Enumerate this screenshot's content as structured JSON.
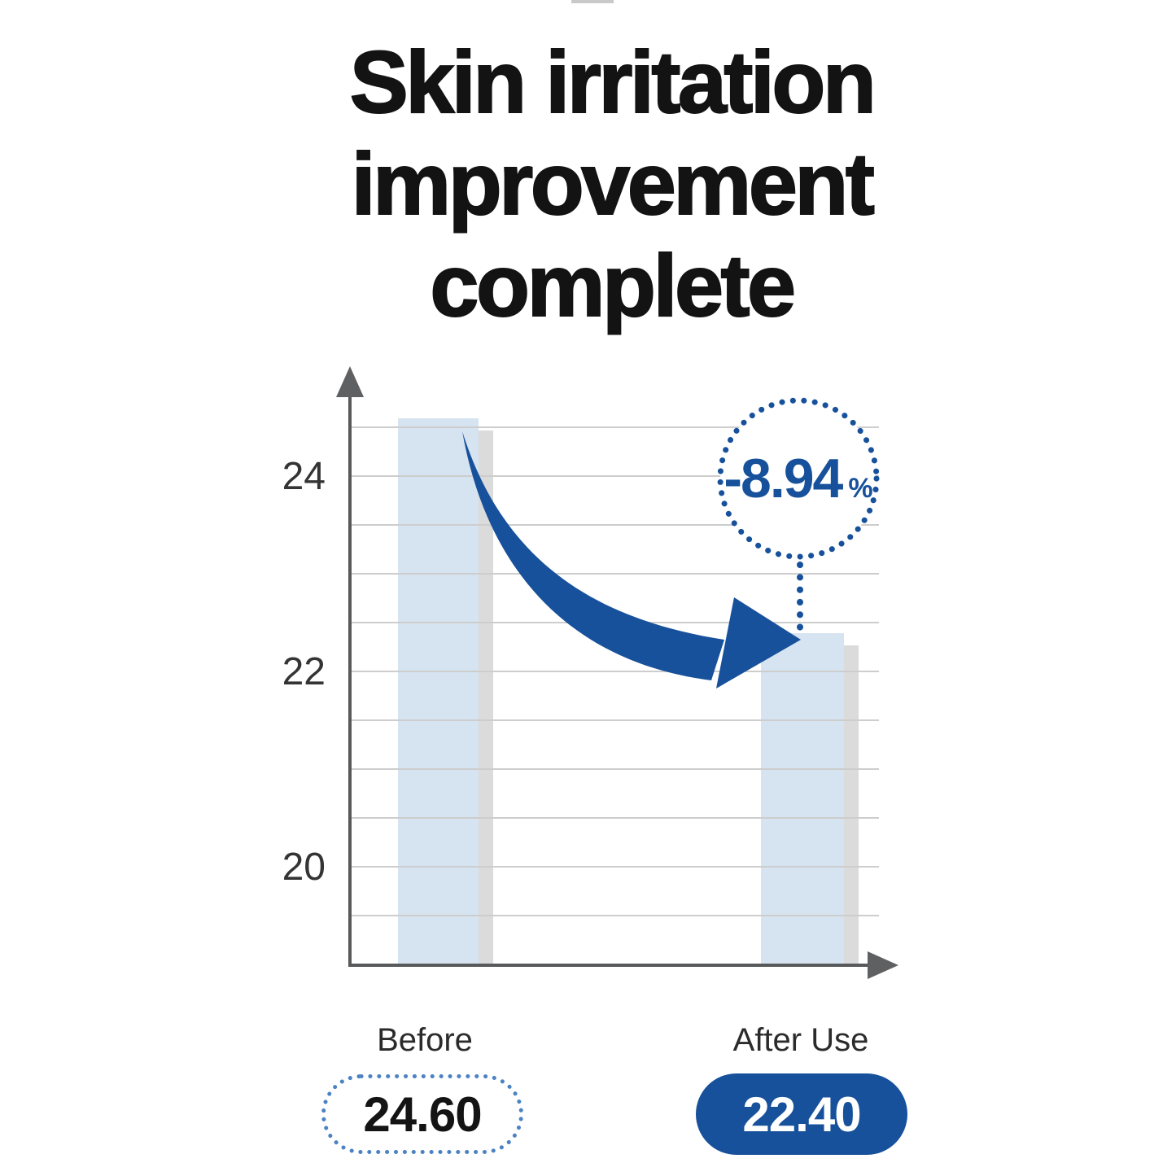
{
  "title": {
    "lines": [
      "Skin irritation",
      "improvement",
      "complete"
    ]
  },
  "chart_data": {
    "type": "bar",
    "title": "Skin irritation improvement complete",
    "categories": [
      "Before",
      "After Use"
    ],
    "values": [
      24.6,
      22.4
    ],
    "value_labels": [
      "24.60",
      "22.40"
    ],
    "yticks": [
      24,
      22,
      20
    ],
    "ylim": [
      19.0,
      24.95
    ],
    "gridline_step": 0.5,
    "grid": true,
    "legend": false,
    "annotation": {
      "value": "-8.94",
      "unit": "%"
    }
  },
  "colors": {
    "accent_blue": "#17519b",
    "bar_fill": "#d6e3f0",
    "bar_shadow": "#dbdbdb",
    "dotted_pill_border": "#4b82c3",
    "gridline": "#cdcdcd",
    "axis": "#58595b",
    "title_text": "#131313"
  }
}
